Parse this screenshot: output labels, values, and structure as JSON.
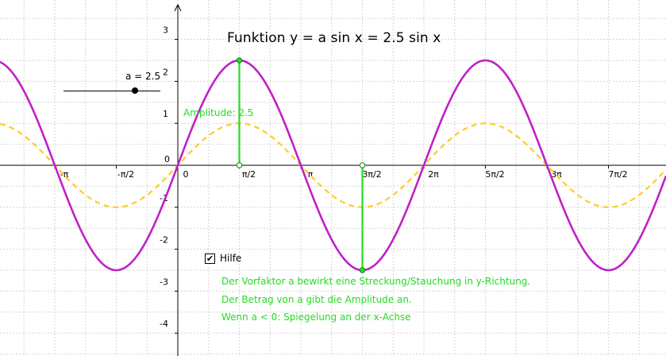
{
  "title": "Funktion   y = a sin x = 2.5 sin x",
  "slider": {
    "label": "a = 2.5",
    "value": 2.5,
    "min": -5,
    "max": 5
  },
  "amplitude_label": "Amplitude: 2.5",
  "checkbox": {
    "label": "Hilfe",
    "checked": true,
    "mark": "✔"
  },
  "help_lines": [
    "Der Vorfaktor a bewirkt eine Streckung/Stauchung in y-Richtung.",
    "Der Betrag von a gibt die Amplitude an.",
    "Wenn a < 0: Spiegelung an der x-Achse"
  ],
  "colors": {
    "main_curve": "#c020c8",
    "reference_curve": "#ffcc22",
    "helper": "#22dd22",
    "grid": "#d6d6d6",
    "axis": "#000000"
  },
  "chart_data": {
    "type": "line",
    "series": [
      {
        "name": "",
        "function": "2.5 sin x",
        "amplitude": 2.5,
        "style": "solid"
      },
      {
        "name": "",
        "function": "sin x",
        "amplitude": 1,
        "style": "dashed"
      }
    ],
    "x_tick_labels": [
      "-π",
      "-π/2",
      "0",
      "π/2",
      "π",
      "3π/2",
      "2π",
      "5π/2",
      "3π",
      "7π/2"
    ],
    "x_tick_values": [
      -3.14159,
      -1.5708,
      0,
      1.5708,
      3.14159,
      4.71239,
      6.28319,
      7.85398,
      9.42478,
      10.9956
    ],
    "y_tick_labels": [
      "3",
      "2",
      "1",
      "0",
      "-1",
      "-2",
      "-3",
      "-4"
    ],
    "y_tick_values": [
      3,
      2,
      1,
      0,
      -1,
      -2,
      -3,
      -4
    ],
    "xlim": [
      -4.02,
      11.72
    ],
    "ylim": [
      -4.6,
      3.72
    ],
    "amplitude_segments": [
      {
        "x": 1.5708,
        "y_from": 0,
        "y_to": 2.5
      },
      {
        "x": 4.71239,
        "y_from": 0,
        "y_to": -2.5
      }
    ],
    "grid": true
  }
}
